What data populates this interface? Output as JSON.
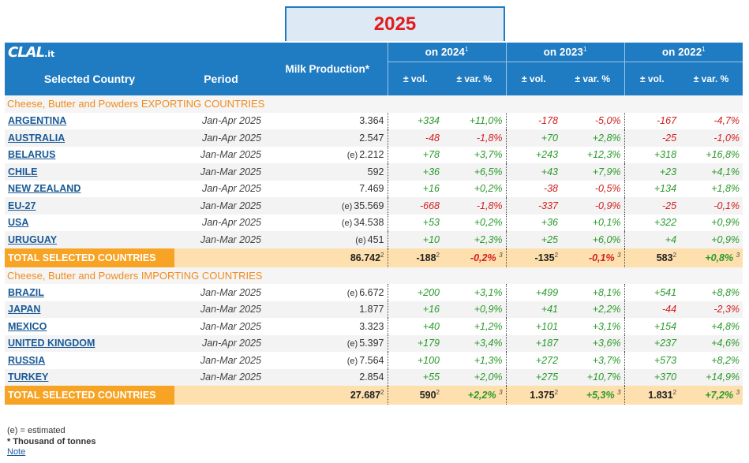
{
  "year": "2025",
  "logo": {
    "main": "CLAL",
    "suffix": ".it"
  },
  "header": {
    "country": "Selected Country",
    "period": "Period",
    "milk": "Milk Production*",
    "groups": [
      {
        "label": "on 2024",
        "sup": "1"
      },
      {
        "label": "on 2023",
        "sup": "1"
      },
      {
        "label": "on 2022",
        "sup": "1"
      }
    ],
    "vol": "± vol.",
    "var": "± var. %"
  },
  "sections": [
    {
      "title": "Cheese, Butter and Powders EXPORTING COUNTRIES",
      "rows": [
        {
          "country": "ARGENTINA",
          "period": "Jan-Apr 2025",
          "est": "",
          "milk": "3.364",
          "v24": "+334",
          "p24": "+11,0%",
          "v23": "-178",
          "p23": "-5,0%",
          "v22": "-167",
          "p22": "-4,7%"
        },
        {
          "country": "AUSTRALIA",
          "period": "Jan-Apr 2025",
          "est": "",
          "milk": "2.547",
          "v24": "-48",
          "p24": "-1,8%",
          "v23": "+70",
          "p23": "+2,8%",
          "v22": "-25",
          "p22": "-1,0%"
        },
        {
          "country": "BELARUS",
          "period": "Jan-Mar 2025",
          "est": "(e)",
          "milk": "2.212",
          "v24": "+78",
          "p24": "+3,7%",
          "v23": "+243",
          "p23": "+12,3%",
          "v22": "+318",
          "p22": "+16,8%"
        },
        {
          "country": "CHILE",
          "period": "Jan-Mar 2025",
          "est": "",
          "milk": "592",
          "v24": "+36",
          "p24": "+6,5%",
          "v23": "+43",
          "p23": "+7,9%",
          "v22": "+23",
          "p22": "+4,1%"
        },
        {
          "country": "NEW ZEALAND",
          "period": "Jan-Apr 2025",
          "est": "",
          "milk": "7.469",
          "v24": "+16",
          "p24": "+0,2%",
          "v23": "-38",
          "p23": "-0,5%",
          "v22": "+134",
          "p22": "+1,8%"
        },
        {
          "country": "EU-27",
          "period": "Jan-Mar 2025",
          "est": "(e)",
          "milk": "35.569",
          "v24": "-668",
          "p24": "-1,8%",
          "v23": "-337",
          "p23": "-0,9%",
          "v22": "-25",
          "p22": "-0,1%"
        },
        {
          "country": "USA",
          "period": "Jan-Apr 2025",
          "est": "(e)",
          "milk": "34.538",
          "v24": "+53",
          "p24": "+0,2%",
          "v23": "+36",
          "p23": "+0,1%",
          "v22": "+322",
          "p22": "+0,9%"
        },
        {
          "country": "URUGUAY",
          "period": "Jan-Mar 2025",
          "est": "(e)",
          "milk": "451",
          "v24": "+10",
          "p24": "+2,3%",
          "v23": "+25",
          "p23": "+6,0%",
          "v22": "+4",
          "p22": "+0,9%"
        }
      ],
      "total": {
        "label": "TOTAL SELECTED COUNTRIES",
        "milk": "86.742",
        "v24": "-188",
        "p24": "-0,2%",
        "v23": "-135",
        "p23": "-0,1%",
        "v22": "583",
        "p22": "+0,8%",
        "sup_vol": "2",
        "sup_var": "3"
      }
    },
    {
      "title": "Cheese, Butter and Powders IMPORTING COUNTRIES",
      "rows": [
        {
          "country": "BRAZIL",
          "period": "Jan-Mar 2025",
          "est": "(e)",
          "milk": "6.672",
          "v24": "+200",
          "p24": "+3,1%",
          "v23": "+499",
          "p23": "+8,1%",
          "v22": "+541",
          "p22": "+8,8%"
        },
        {
          "country": "JAPAN",
          "period": "Jan-Mar 2025",
          "est": "",
          "milk": "1.877",
          "v24": "+16",
          "p24": "+0,9%",
          "v23": "+41",
          "p23": "+2,2%",
          "v22": "-44",
          "p22": "-2,3%"
        },
        {
          "country": "MEXICO",
          "period": "Jan-Mar 2025",
          "est": "",
          "milk": "3.323",
          "v24": "+40",
          "p24": "+1,2%",
          "v23": "+101",
          "p23": "+3,1%",
          "v22": "+154",
          "p22": "+4,8%"
        },
        {
          "country": "UNITED KINGDOM",
          "period": "Jan-Apr 2025",
          "est": "(e)",
          "milk": "5.397",
          "v24": "+179",
          "p24": "+3,4%",
          "v23": "+187",
          "p23": "+3,6%",
          "v22": "+237",
          "p22": "+4,6%"
        },
        {
          "country": "RUSSIA",
          "period": "Jan-Mar 2025",
          "est": "(e)",
          "milk": "7.564",
          "v24": "+100",
          "p24": "+1,3%",
          "v23": "+272",
          "p23": "+3,7%",
          "v22": "+573",
          "p22": "+8,2%"
        },
        {
          "country": "TURKEY",
          "period": "Jan-Mar 2025",
          "est": "",
          "milk": "2.854",
          "v24": "+55",
          "p24": "+2,0%",
          "v23": "+275",
          "p23": "+10,7%",
          "v22": "+370",
          "p22": "+14,9%"
        }
      ],
      "total": {
        "label": "TOTAL SELECTED COUNTRIES",
        "milk": "27.687",
        "v24": "590",
        "p24": "+2,2%",
        "v23": "1.375",
        "p23": "+5,3%",
        "v22": "1.831",
        "p22": "+7,2%",
        "sup_vol": "2",
        "sup_var": "3"
      }
    }
  ],
  "notes": {
    "estimated": "(e) = estimated",
    "unit": "* Thousand of tonnes",
    "link": "Note"
  },
  "colors": {
    "header": "#1f7bc2",
    "total_label": "#f7a324",
    "total_bg": "#fde0ae",
    "positive": "#2a9a2a",
    "negative": "#d21e1e",
    "section": "#f08c1e",
    "year": "#e21b1b"
  }
}
